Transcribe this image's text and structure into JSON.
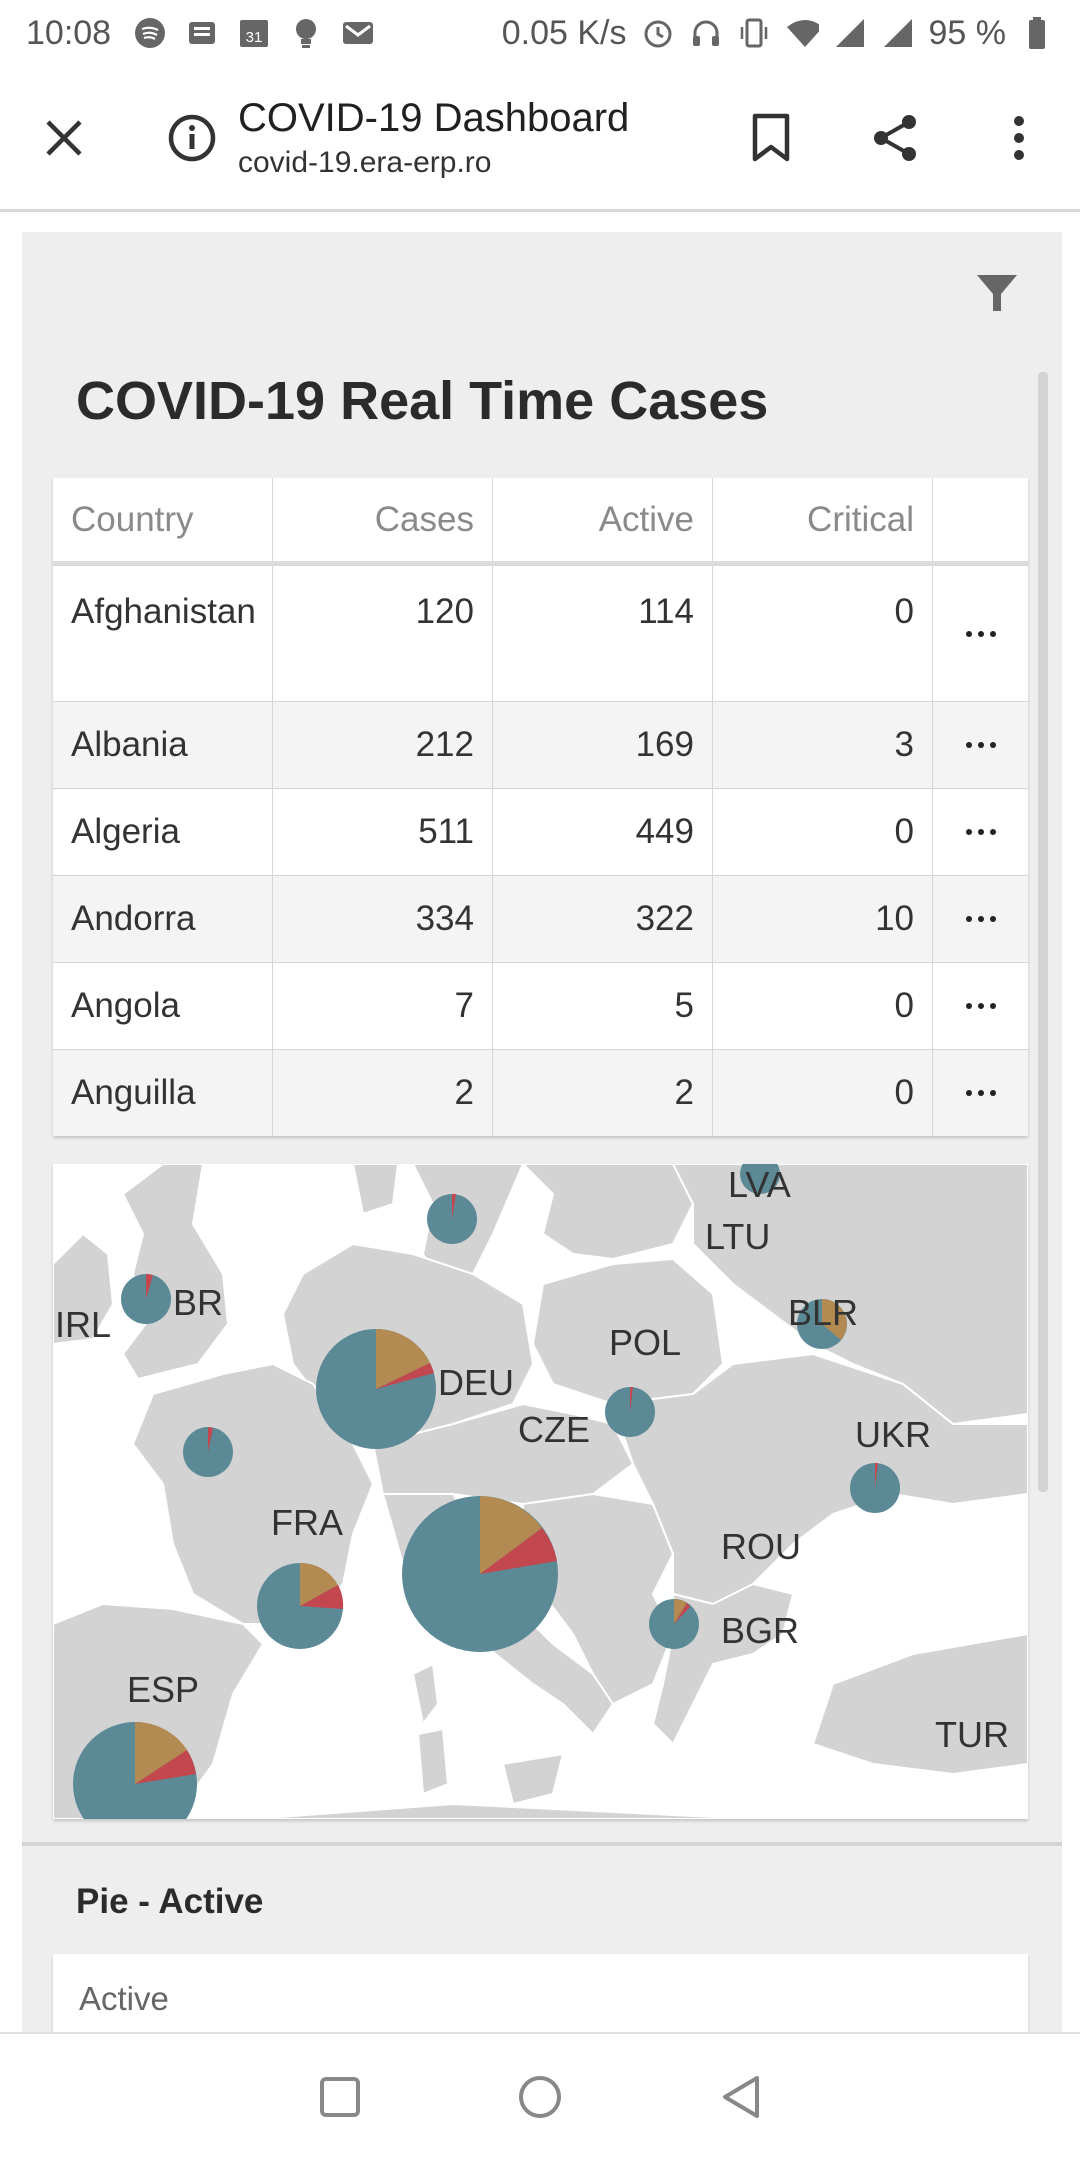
{
  "status_bar": {
    "time": "10:08",
    "net_speed": "0.05 K/s",
    "battery": "95 %",
    "icons_left": [
      "spotify-icon",
      "news-icon",
      "calendar-icon",
      "bulb-icon",
      "gmail-icon"
    ],
    "calendar_day": "31",
    "icons_right": [
      "alarm-icon",
      "headphones-icon",
      "vibrate-icon",
      "wifi-icon",
      "signal-icon",
      "signal-icon",
      "battery-icon"
    ]
  },
  "browser": {
    "page_title": "COVID-19 Dashboard",
    "url": "covid-19.era-erp.ro"
  },
  "dashboard": {
    "title": "COVID-19 Real Time Cases",
    "table": {
      "columns": [
        "Country",
        "Cases",
        "Active",
        "Critical",
        ""
      ],
      "rows": [
        {
          "country": "Afghanistan",
          "cases": "120",
          "active": "114",
          "critical": "0"
        },
        {
          "country": "Albania",
          "cases": "212",
          "active": "169",
          "critical": "3"
        },
        {
          "country": "Algeria",
          "cases": "511",
          "active": "449",
          "critical": "0"
        },
        {
          "country": "Andorra",
          "cases": "334",
          "active": "322",
          "critical": "10"
        },
        {
          "country": "Angola",
          "cases": "7",
          "active": "5",
          "critical": "0"
        },
        {
          "country": "Anguilla",
          "cases": "2",
          "active": "2",
          "critical": "0"
        }
      ]
    },
    "map": {
      "labels": [
        "LVA",
        "LTU",
        "IRL",
        "BR",
        "POL",
        "BLR",
        "DEU",
        "CZE",
        "UKR",
        "FRA",
        "ROU",
        "BGR",
        "ESP",
        "TUR"
      ],
      "colors": {
        "land": "#d3d3d3",
        "border": "#ffffff",
        "active": "#5b8a96",
        "recovered": "#b38a52",
        "deaths": "#c2474f"
      }
    },
    "pie_section": {
      "title": "Pie - Active",
      "card_label": "Active"
    }
  }
}
